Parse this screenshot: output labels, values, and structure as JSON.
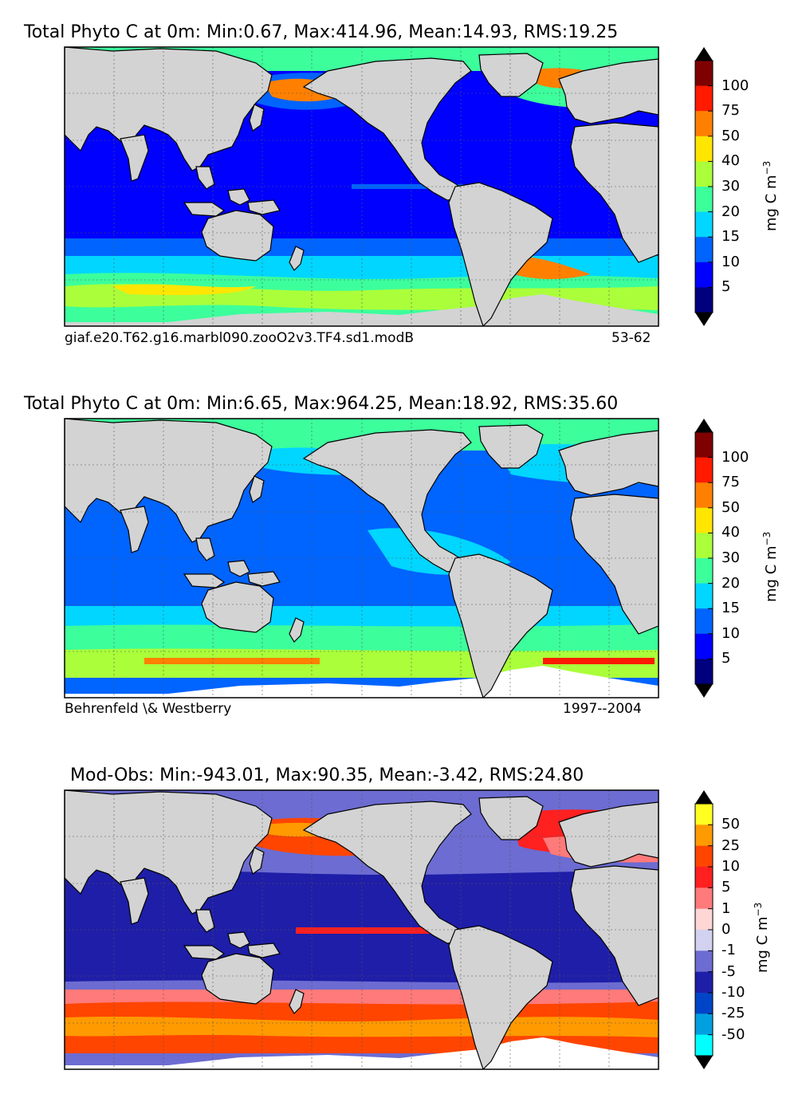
{
  "chart_data": [
    {
      "type": "heatmap",
      "title": "Total Phyto C at 0m: Min:0.67, Max:414.96, Mean:14.93, RMS:19.25",
      "stats": {
        "min": 0.67,
        "max": 414.96,
        "mean": 14.93,
        "rms": 19.25
      },
      "subtitle_left": "giaf.e20.T62.g16.marbl090.zooO2v3.TF4.sd1.modB",
      "subtitle_right": "53-62",
      "colorbar": {
        "label": "mg C m",
        "label_exp": "−3",
        "ticks": [
          "100",
          "75",
          "50",
          "40",
          "30",
          "20",
          "15",
          "10",
          "5"
        ],
        "colors": [
          "#7f0000",
          "#ff1a00",
          "#ff8000",
          "#ffe600",
          "#aaff3a",
          "#3cff9c",
          "#00d6ff",
          "#0064ff",
          "#0000ff",
          "#00007f"
        ],
        "extend": "both"
      }
    },
    {
      "type": "heatmap",
      "title": "Total Phyto C at 0m: Min:6.65, Max:964.25, Mean:18.92, RMS:35.60",
      "stats": {
        "min": 6.65,
        "max": 964.25,
        "mean": 18.92,
        "rms": 35.6
      },
      "subtitle_left": "Behrenfeld \\& Westberry",
      "subtitle_right": "1997--2004",
      "colorbar": {
        "label": "mg C m",
        "label_exp": "−3",
        "ticks": [
          "100",
          "75",
          "50",
          "40",
          "30",
          "20",
          "15",
          "10",
          "5"
        ],
        "colors": [
          "#7f0000",
          "#ff1a00",
          "#ff8000",
          "#ffe600",
          "#aaff3a",
          "#3cff9c",
          "#00d6ff",
          "#0064ff",
          "#0000ff",
          "#00007f"
        ],
        "extend": "both"
      }
    },
    {
      "type": "heatmap",
      "title": "Mod-Obs: Min:-943.01, Max:90.35, Mean:-3.42, RMS:24.80",
      "stats": {
        "min": -943.01,
        "max": 90.35,
        "mean": -3.42,
        "rms": 24.8
      },
      "subtitle_left": "",
      "subtitle_right": "",
      "colorbar": {
        "label": "mg C m",
        "label_exp": "−3",
        "ticks": [
          "50",
          "25",
          "10",
          "5",
          "1",
          "0",
          "-1",
          "-5",
          "-10",
          "-25",
          "-50"
        ],
        "colors": [
          "#ffff22",
          "#ff9a00",
          "#ff4500",
          "#ff2020",
          "#ff7a7a",
          "#ffd6d6",
          "#d2d2f0",
          "#6c6cd2",
          "#1e1ea8",
          "#0044c8",
          "#00a0e0",
          "#00ffff"
        ],
        "extend": "both"
      }
    }
  ],
  "colors": {
    "land": "#d3d3d3",
    "missing": "#ffffff",
    "coast": "#000000"
  }
}
